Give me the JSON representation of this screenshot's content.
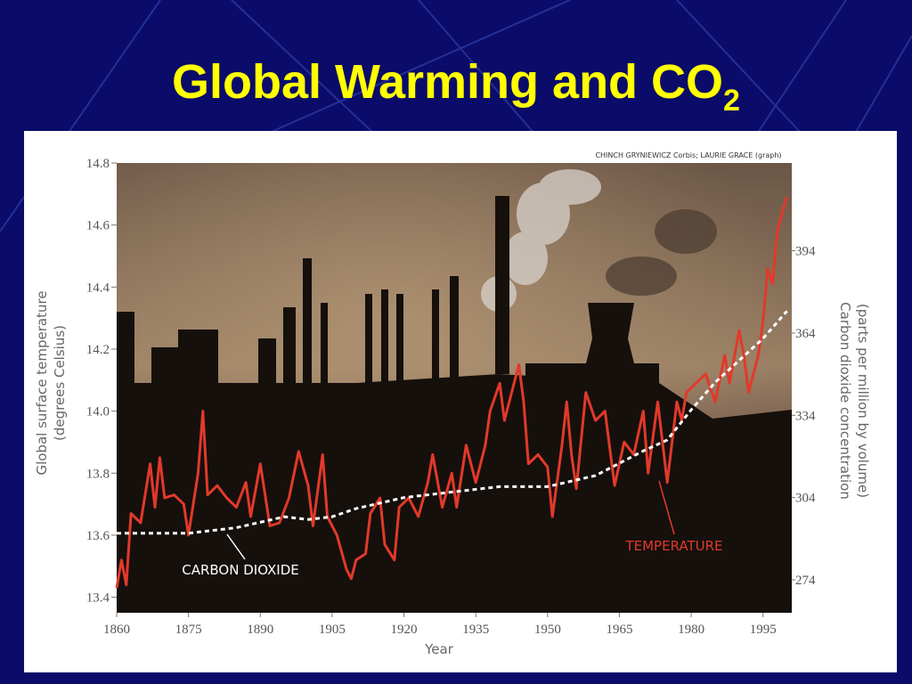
{
  "slide": {
    "title": "Global Warming and CO",
    "title_subscript": "2"
  },
  "chart_data": {
    "type": "line",
    "credit": "CHINCH GRYNIEWICZ Corbis; LAURIE GRACE (graph)",
    "x_label": "Year",
    "y_label": [
      "Global surface temperature",
      "(degrees Celsius)"
    ],
    "y2_label": [
      "Carbon dioxide concentration",
      "(parts per million by volume)"
    ],
    "xlim": [
      1860,
      2001
    ],
    "xticks": [
      1860,
      1875,
      1890,
      1905,
      1920,
      1935,
      1950,
      1965,
      1980,
      1995
    ],
    "ylim": [
      13.35,
      14.8
    ],
    "yticks": [
      13.4,
      13.6,
      13.8,
      {
        "value": 14,
        "label": "14.0"
      },
      14.2,
      14.4,
      14.6,
      14.8
    ],
    "y2lim": [
      262,
      426
    ],
    "y2ticks": [
      274,
      304,
      334,
      364,
      394
    ],
    "series": [
      {
        "name": "TEMPERATURE",
        "color": "#e2392a",
        "axis": "y",
        "x": [
          1860,
          1861,
          1862,
          1863,
          1865,
          1867,
          1868,
          1869,
          1870,
          1872,
          1874,
          1875,
          1877,
          1878,
          1879,
          1881,
          1883,
          1885,
          1887,
          1888,
          1890,
          1892,
          1894,
          1896,
          1898,
          1900,
          1901,
          1903,
          1904,
          1906,
          1908,
          1909,
          1910,
          1912,
          1913,
          1915,
          1916,
          1918,
          1919,
          1921,
          1923,
          1925,
          1926,
          1928,
          1930,
          1931,
          1933,
          1935,
          1937,
          1938,
          1940,
          1941,
          1943,
          1944,
          1945,
          1946,
          1948,
          1950,
          1951,
          1953,
          1954,
          1955,
          1956,
          1958,
          1960,
          1962,
          1964,
          1966,
          1968,
          1970,
          1971,
          1973,
          1975,
          1977,
          1978,
          1979,
          1981,
          1983,
          1985,
          1987,
          1988,
          1990,
          1991,
          1992,
          1994,
          1995,
          1996,
          1997,
          1998,
          1999,
          2000
        ],
        "values": [
          13.43,
          13.52,
          13.44,
          13.67,
          13.64,
          13.83,
          13.69,
          13.85,
          13.72,
          13.73,
          13.7,
          13.6,
          13.8,
          14.0,
          13.73,
          13.76,
          13.72,
          13.69,
          13.77,
          13.66,
          13.83,
          13.63,
          13.64,
          13.72,
          13.87,
          13.76,
          13.63,
          13.86,
          13.66,
          13.6,
          13.49,
          13.46,
          13.52,
          13.54,
          13.67,
          13.72,
          13.57,
          13.52,
          13.69,
          13.72,
          13.66,
          13.77,
          13.86,
          13.69,
          13.8,
          13.69,
          13.89,
          13.77,
          13.89,
          14.0,
          14.09,
          13.97,
          14.09,
          14.15,
          14.03,
          13.83,
          13.86,
          13.82,
          13.66,
          13.89,
          14.03,
          13.86,
          13.75,
          14.06,
          13.97,
          14.0,
          13.76,
          13.9,
          13.86,
          14.0,
          13.8,
          14.03,
          13.77,
          14.03,
          13.97,
          14.06,
          14.09,
          14.12,
          14.03,
          14.18,
          14.09,
          14.26,
          14.18,
          14.06,
          14.18,
          14.29,
          14.46,
          14.41,
          14.58,
          14.64,
          14.69
        ]
      },
      {
        "name": "CARBON DIOXIDE",
        "color": "#ffffff",
        "axis": "y2",
        "x": [
          1860,
          1875,
          1885,
          1890,
          1895,
          1900,
          1905,
          1910,
          1920,
          1930,
          1940,
          1950,
          1960,
          1970,
          1975,
          1980,
          1985,
          1990,
          1995,
          2000
        ],
        "values": [
          291,
          291,
          293,
          295,
          297,
          296,
          297,
          300,
          304,
          306,
          308,
          308,
          312,
          321,
          325,
          336,
          346,
          354,
          362,
          372
        ]
      }
    ]
  }
}
